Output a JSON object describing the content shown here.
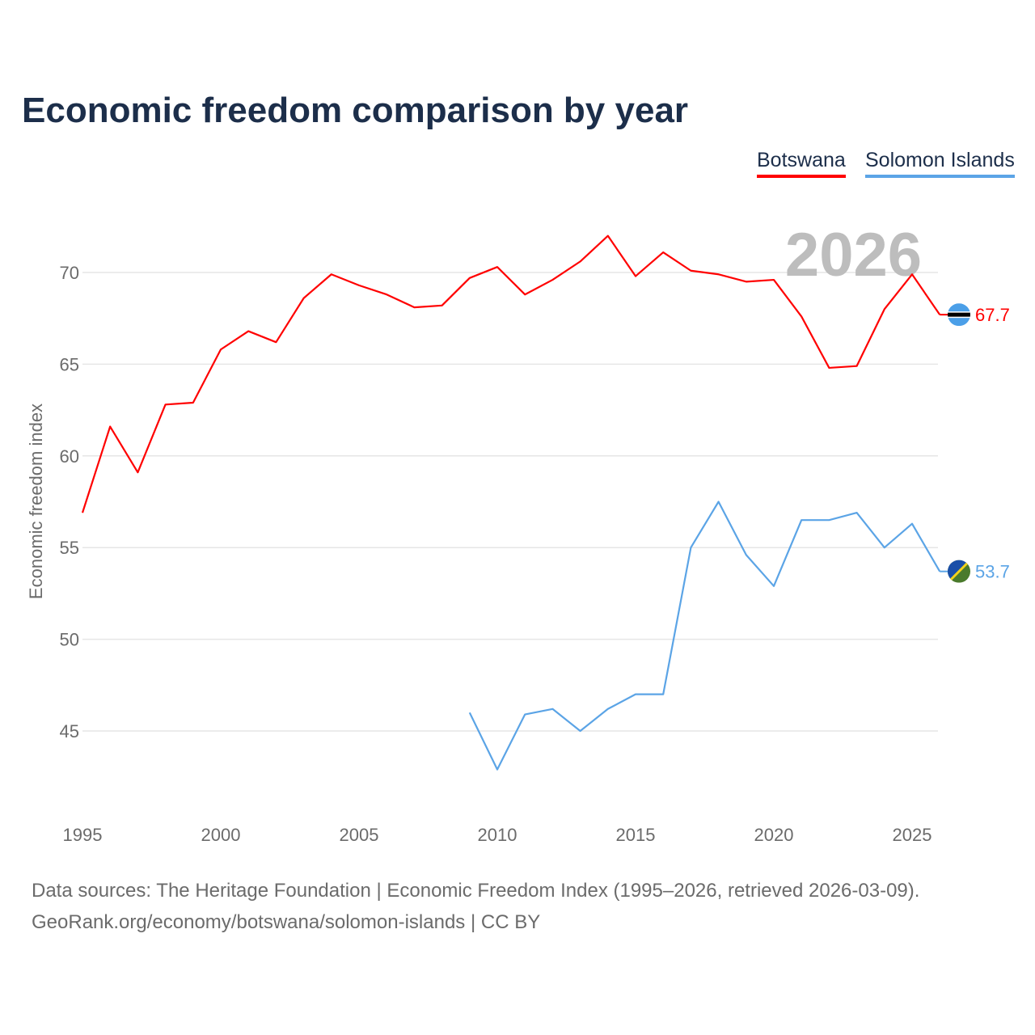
{
  "chart_data": {
    "type": "line",
    "title": "Economic freedom comparison by year",
    "xlabel": "",
    "ylabel": "Economic freedom index",
    "xlim": [
      1995,
      2026
    ],
    "ylim": [
      41,
      73
    ],
    "x_ticks": [
      1995,
      2000,
      2005,
      2010,
      2015,
      2020,
      2025
    ],
    "y_ticks": [
      45,
      50,
      55,
      60,
      65,
      70
    ],
    "grid": true,
    "legend_placement": "top-right",
    "year_watermark": "2026",
    "series": [
      {
        "name": "Botswana",
        "color": "#ff0000",
        "end_label": "67.7",
        "x": [
          1995,
          1996,
          1997,
          1998,
          1999,
          2000,
          2001,
          2002,
          2003,
          2004,
          2005,
          2006,
          2007,
          2008,
          2009,
          2010,
          2011,
          2012,
          2013,
          2014,
          2015,
          2016,
          2017,
          2018,
          2019,
          2020,
          2021,
          2022,
          2023,
          2024,
          2025,
          2026
        ],
        "values": [
          56.9,
          61.6,
          59.1,
          62.8,
          62.9,
          65.8,
          66.8,
          66.2,
          68.6,
          69.9,
          69.3,
          68.8,
          68.1,
          68.2,
          69.7,
          70.3,
          68.8,
          69.6,
          70.6,
          72.0,
          69.8,
          71.1,
          70.1,
          69.9,
          69.5,
          69.6,
          67.6,
          64.8,
          64.9,
          68.0,
          69.9,
          67.7
        ]
      },
      {
        "name": "Solomon Islands",
        "color": "#5ba4e6",
        "end_label": "53.7",
        "x": [
          2009,
          2010,
          2011,
          2012,
          2013,
          2014,
          2015,
          2016,
          2017,
          2018,
          2019,
          2020,
          2021,
          2022,
          2023,
          2024,
          2025,
          2026
        ],
        "values": [
          46.0,
          42.9,
          45.9,
          46.2,
          45.0,
          46.2,
          47.0,
          47.0,
          55.0,
          57.5,
          54.6,
          52.9,
          56.5,
          56.5,
          56.9,
          55.0,
          56.3,
          53.7
        ]
      }
    ]
  },
  "footer": {
    "line1": "Data sources: The Heritage Foundation | Economic Freedom Index (1995–2026, retrieved 2026-03-09).",
    "line2": "GeoRank.org/economy/botswana/solomon-islands | CC BY"
  }
}
